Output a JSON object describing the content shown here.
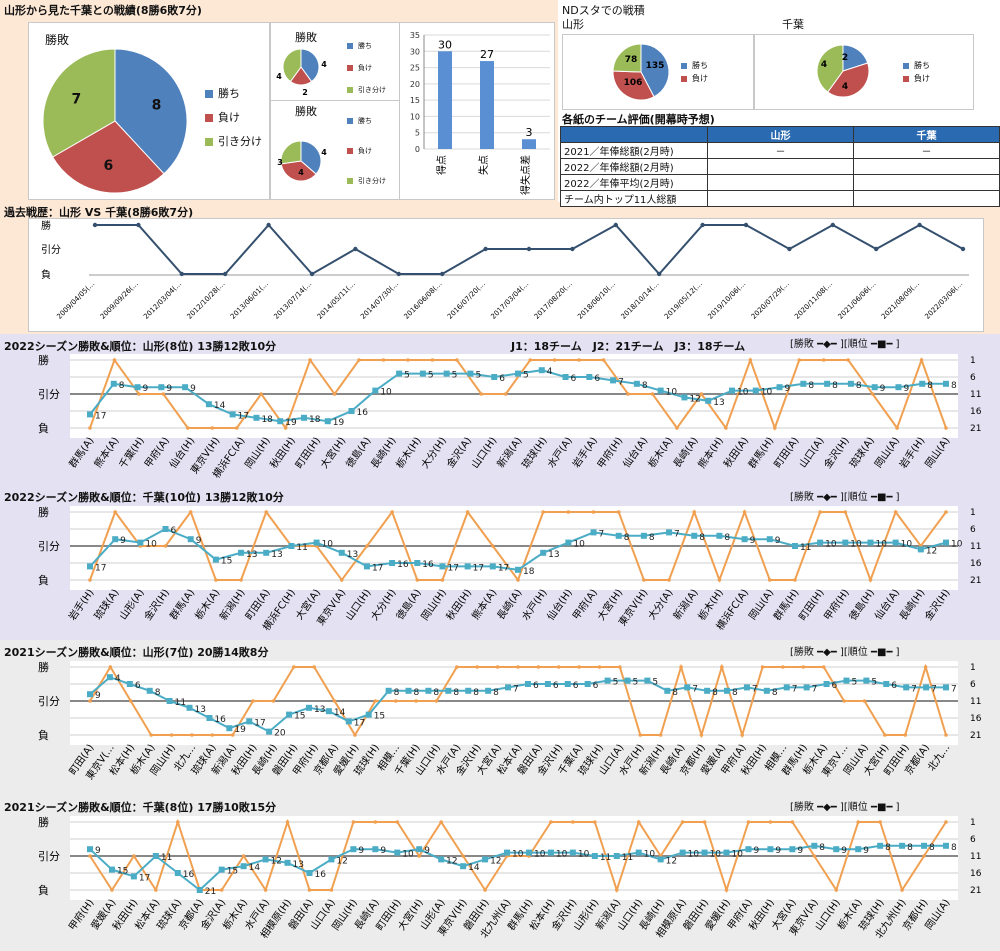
{
  "colors": {
    "win": "#4f81bd",
    "loss": "#c0504d",
    "draw": "#9bbb59",
    "line": "#34506e",
    "result": "#f0a050",
    "rank": "#4bacc6"
  },
  "summary": {
    "title": "山形から見た千葉との戦績(8勝6敗7分)",
    "legend": [
      "勝ち",
      "負け",
      "引き分け"
    ],
    "mini_title": "勝敗",
    "big_pie": {
      "title": "勝敗",
      "values": [
        8,
        6,
        7
      ]
    },
    "pie_a": {
      "title": "勝敗",
      "values": [
        4,
        2,
        4
      ]
    },
    "pie_b": {
      "title": "勝敗",
      "values": [
        4,
        4,
        3
      ]
    },
    "bars": {
      "categories": [
        "得点",
        "失点",
        "得失点差"
      ],
      "values": [
        30,
        27,
        3
      ],
      "yticks": [
        "0",
        "5",
        "10",
        "15",
        "20",
        "25",
        "30",
        "35"
      ]
    }
  },
  "nd": {
    "title": "NDスタでの戦積",
    "yamagata": {
      "label": "山形",
      "values": [
        135,
        106,
        78
      ],
      "legend": [
        "勝ち",
        "負け"
      ]
    },
    "chiba": {
      "label": "千葉",
      "values": [
        2,
        4,
        4
      ],
      "legend": [
        "勝ち",
        "負け"
      ]
    }
  },
  "evaluation": {
    "title": "各紙のチーム評価(開幕時予想)",
    "headers": [
      "",
      "山形",
      "千葉"
    ],
    "rows": [
      [
        "2021／年俸総額(2月時)",
        "－",
        "－"
      ],
      [
        "2022／年俸総額(2月時)",
        "",
        ""
      ],
      [
        "2022／年俸平均(2月時)",
        "",
        ""
      ],
      [
        "チーム内トップ11人総額",
        "",
        ""
      ]
    ]
  },
  "history": {
    "title": "過去戦歴：山形 VS 千葉(8勝6敗7分)",
    "ylabels": [
      "勝",
      "引分",
      "負"
    ],
    "dates": [
      "2009/04/05(…",
      "2009/09/26(…",
      "2012/03/04(…",
      "2012/10/28(…",
      "2013/06/01(…",
      "2013/07/14(…",
      "2014/05/11(…",
      "2014/07/30(…",
      "2016/06/08(…",
      "2016/07/20(…",
      "2017/03/04(…",
      "2017/08/20(…",
      "2018/06/10(…",
      "2018/10/14(…",
      "2019/05/12(…",
      "2019/10/06(…",
      "2020/07/29(…",
      "2020/11/08(…",
      "2021/06/06(…",
      "2021/08/09(…",
      "2022/03/06(…"
    ],
    "results": [
      1,
      1,
      -1,
      -1,
      1,
      -1,
      0,
      -1,
      -1,
      0,
      0,
      0,
      1,
      -1,
      1,
      1,
      0,
      1,
      0,
      1,
      0
    ]
  },
  "seasons": [
    {
      "title": "2022シーズン勝敗&順位：山形(8位) 13勝12敗10分",
      "info": "J1：18チーム　J2：21チーム　J3：18チーム",
      "legend": "[勝敗 ━◆━ ][順位 ━■━ ]",
      "opponents": [
        "群馬(A)",
        "熊本(A)",
        "千葉(H)",
        "甲府(A)",
        "仙台(H)",
        "東京V(H)",
        "横浜FC(A)",
        "岡山(H)",
        "秋田(H)",
        "町田(H)",
        "大宮(H)",
        "徳島(A)",
        "長崎(H)",
        "栃木(H)",
        "大分(H)",
        "金沢(A)",
        "山口(H)",
        "新潟(A)",
        "琉球(H)",
        "水戸(A)",
        "岩手(A)",
        "甲府(H)",
        "仙台(A)",
        "栃木(A)",
        "長崎(A)",
        "熊本(H)",
        "秋田(A)",
        "群馬(H)",
        "町田(A)",
        "山口(A)",
        "金沢(H)",
        "琉球(A)",
        "岡山(A)",
        "岩手(H)",
        "岡山(A)"
      ],
      "results": [
        -1,
        1,
        0,
        0,
        -1,
        -1,
        -1,
        0,
        -1,
        1,
        0,
        1,
        1,
        1,
        1,
        1,
        0,
        0,
        1,
        1,
        1,
        1,
        0,
        0,
        -1,
        0,
        -1,
        1,
        -1,
        1,
        1,
        1,
        0,
        -1,
        1,
        -1
      ],
      "ranks": [
        17,
        8,
        9,
        9,
        9,
        14,
        17,
        18,
        19,
        18,
        19,
        16,
        10,
        5,
        5,
        5,
        5,
        6,
        5,
        4,
        6,
        6,
        7,
        8,
        10,
        12,
        13,
        10,
        10,
        9,
        8,
        8,
        8,
        9,
        9,
        8,
        8
      ]
    },
    {
      "title": "2022シーズン勝敗&順位：千葉(10位) 13勝12敗10分",
      "legend": "[勝敗 ━◆━ ][順位 ━■━ ]",
      "opponents": [
        "岩手(H)",
        "琉球(A)",
        "山形(A)",
        "金沢(H)",
        "群馬(A)",
        "栃木(A)",
        "新潟(H)",
        "町田(A)",
        "横浜FC(H)",
        "大宮(A)",
        "東京V(A)",
        "山口(H)",
        "大分(H)",
        "徳島(A)",
        "岡山(H)",
        "秋田(H)",
        "熊本(A)",
        "長崎(A)",
        "水戸(H)",
        "仙台(H)",
        "甲府(A)",
        "大宮(H)",
        "東京V(H)",
        "大分(A)",
        "新潟(A)",
        "栃木(H)",
        "横浜FC(A)",
        "岡山(A)",
        "群馬(H)",
        "町田(H)",
        "甲府(H)",
        "徳島(H)",
        "仙台(A)",
        "長崎(H)",
        "金沢(H)"
      ],
      "results": [
        -1,
        1,
        0,
        0,
        1,
        -1,
        -1,
        1,
        0,
        0,
        -1,
        0,
        1,
        -1,
        -1,
        1,
        0,
        -1,
        1,
        1,
        1,
        1,
        -1,
        -1,
        1,
        -1,
        1,
        -1,
        -1,
        1,
        1,
        -1,
        1,
        0,
        1
      ],
      "ranks": [
        17,
        9,
        10,
        6,
        9,
        15,
        13,
        13,
        11,
        10,
        13,
        17,
        16,
        16,
        17,
        17,
        17,
        18,
        13,
        10,
        7,
        8,
        8,
        7,
        8,
        8,
        9,
        9,
        11,
        10,
        10,
        10,
        10,
        12,
        10
      ]
    },
    {
      "title": "2021シーズン勝敗&順位：山形(7位) 20勝14敗8分",
      "legend": "[勝敗 ━◆━ ][順位 ━■━ ]",
      "opponents": [
        "町田(A)",
        "東京V(…",
        "松本(H)",
        "栃木(A)",
        "岡山(H)",
        "北九…",
        "琉球(A)",
        "新潟(A)",
        "秋田(H)",
        "長崎(H)",
        "磐田(H)",
        "甲府(H)",
        "京都(A)",
        "愛媛(H)",
        "琉球(H)",
        "相模…",
        "千葉(H)",
        "山口(H)",
        "水戸(A)",
        "金沢(H)",
        "大宮(A)",
        "松本(A)",
        "磐田(A)",
        "金沢(H)",
        "千葉(A)",
        "琉球(H)",
        "山口(A)",
        "水戸(H)",
        "新潟(H)",
        "長崎(A)",
        "京都(H)",
        "愛媛(A)",
        "甲府(A)",
        "秋田(H)",
        "相模…",
        "群馬(H)",
        "栃木(A)",
        "東京V…",
        "岡山(A)",
        "大宮(H)",
        "町田(H)",
        "京都(A)",
        "北九…"
      ],
      "results": [
        0,
        1,
        0,
        -1,
        -1,
        -1,
        -1,
        -1,
        0,
        0,
        1,
        1,
        0,
        -1,
        0,
        0,
        0,
        0,
        1,
        1,
        1,
        1,
        1,
        1,
        1,
        1,
        1,
        -1,
        -1,
        1,
        -1,
        1,
        -1,
        1,
        1,
        1,
        1,
        0,
        0,
        -1,
        -1,
        1,
        -1
      ],
      "ranks": [
        9,
        4,
        6,
        8,
        11,
        13,
        16,
        19,
        17,
        20,
        15,
        13,
        14,
        17,
        15,
        8,
        8,
        8,
        8,
        8,
        8,
        7,
        6,
        6,
        6,
        6,
        5,
        5,
        5,
        8,
        7,
        8,
        8,
        7,
        8,
        7,
        7,
        6,
        5,
        5,
        6,
        7,
        7,
        7
      ]
    },
    {
      "title": "2021シーズン勝敗&順位：千葉(8位) 17勝10敗15分",
      "legend": "[勝敗 ━◆━ ][順位 ━■━ ]",
      "opponents": [
        "甲府(H)",
        "愛媛(A)",
        "秋田(H)",
        "松本(A)",
        "琉球(A)",
        "京都(A)",
        "金沢(A)",
        "栃木(A)",
        "水戸(A)",
        "相模原(H)",
        "磐田(A)",
        "山口(A)",
        "岡山(H)",
        "長崎(A)",
        "町田(H)",
        "大宮(H)",
        "山形(A)",
        "東京V(H)",
        "磐田(H)",
        "北九州(A)",
        "群馬(H)",
        "松本(H)",
        "金沢(H)",
        "山形(H)",
        "新潟(A)",
        "山口(H)",
        "長崎(H)",
        "相模原(A)",
        "磐田(H)",
        "愛媛(H)",
        "甲府(A)",
        "秋田(H)",
        "大宮(A)",
        "東京V(A)",
        "山口(H)",
        "栃木(A)",
        "琉球(H)",
        "北九州(H)",
        "京都(H)",
        "岡山(A)"
      ],
      "results": [
        0,
        -1,
        0,
        -1,
        1,
        -1,
        -1,
        0,
        -1,
        1,
        -1,
        -1,
        1,
        1,
        1,
        0,
        1,
        0,
        -1,
        0,
        0,
        1,
        1,
        1,
        -1,
        1,
        0,
        1,
        1,
        -1,
        1,
        1,
        1,
        0,
        -1,
        1,
        1,
        -1,
        0,
        1
      ],
      "ranks": [
        9,
        15,
        17,
        11,
        16,
        21,
        15,
        14,
        12,
        13,
        16,
        12,
        9,
        9,
        10,
        9,
        12,
        14,
        12,
        10,
        10,
        10,
        10,
        11,
        11,
        10,
        12,
        10,
        10,
        10,
        9,
        9,
        9,
        8,
        9,
        9,
        8,
        8,
        8,
        8
      ]
    }
  ]
}
